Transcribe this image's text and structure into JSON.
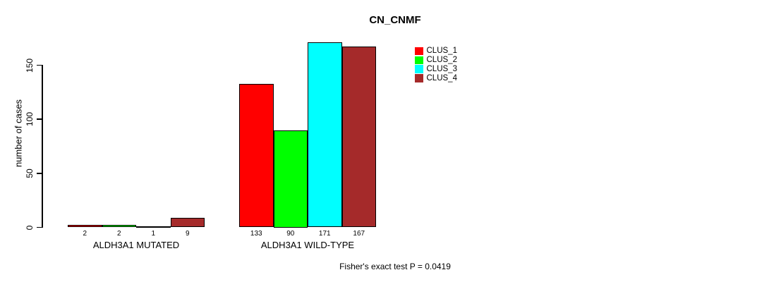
{
  "chart_data": {
    "type": "bar",
    "title": "CN_CNMF",
    "ylabel": "number of cases",
    "xlabel": "",
    "categories": [
      "ALDH3A1 MUTATED",
      "ALDH3A1 WILD-TYPE"
    ],
    "series": [
      {
        "name": "CLUS_1",
        "color": "#FF0000",
        "values": [
          2,
          133
        ]
      },
      {
        "name": "CLUS_2",
        "color": "#00FF00",
        "values": [
          2,
          90
        ]
      },
      {
        "name": "CLUS_3",
        "color": "#00FFFF",
        "values": [
          1,
          171
        ]
      },
      {
        "name": "CLUS_4",
        "color": "#A52A2A",
        "values": [
          9,
          167
        ]
      }
    ],
    "bar_value_labels": [
      [
        "2",
        "2",
        "1",
        "9"
      ],
      [
        "133",
        "90",
        "171",
        "167"
      ]
    ],
    "yticks": [
      0,
      50,
      100,
      150
    ],
    "ytick_labels": [
      "0",
      "50",
      "100",
      "150"
    ],
    "ylim": [
      0,
      175
    ],
    "grid": false,
    "legend_position": "upper-middle-right",
    "legend_entries": [
      "CLUS_1",
      "CLUS_2",
      "CLUS_3",
      "CLUS_4"
    ],
    "annotation": "Fisher's exact test P = 0.0419",
    "bar_border_color": "#000000",
    "text_color": "#000000",
    "background_color": "#FFFFFF"
  }
}
